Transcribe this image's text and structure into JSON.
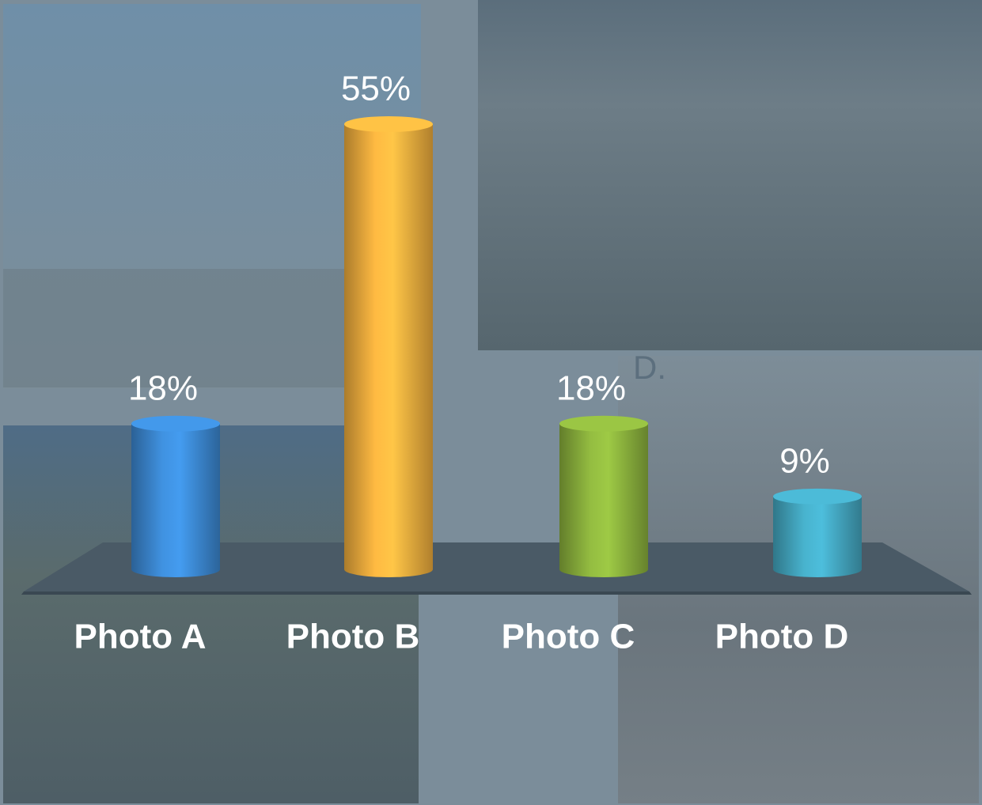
{
  "chart_data": {
    "type": "bar",
    "categories": [
      "Photo A",
      "Photo B",
      "Photo C",
      "Photo D"
    ],
    "values": [
      18,
      55,
      18,
      9
    ],
    "value_labels": [
      "18%",
      "55%",
      "18%",
      "9%"
    ],
    "colors": [
      "#3d8bd6",
      "#f4b13f",
      "#8db43e",
      "#45aac4"
    ],
    "annotations": [
      "D."
    ]
  }
}
